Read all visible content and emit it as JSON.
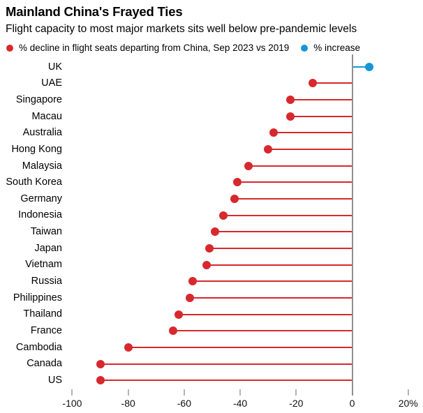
{
  "header": {
    "title": "Mainland China's Frayed Ties",
    "subtitle": "Flight capacity to most major markets sits well below pre-pandemic levels"
  },
  "legend": {
    "decline": "% decline in flight seats departing from China, Sep 2023 vs 2019",
    "increase": "% increase"
  },
  "colors": {
    "decline": "#d7282d",
    "increase": "#1496d7",
    "axis_line": "#8f8f8f",
    "tick_mark": "#b5b5b5",
    "text": "#000000",
    "background": "#ffffff"
  },
  "chart_data": {
    "type": "bar",
    "variant": "horizontal-lollipop",
    "title": "Mainland China's Frayed Ties",
    "subtitle": "Flight capacity to most major markets sits well below pre-pandemic levels",
    "unit": "%",
    "categories": [
      "UK",
      "UAE",
      "Singapore",
      "Macau",
      "Australia",
      "Hong Kong",
      "Malaysia",
      "South Korea",
      "Germany",
      "Indonesia",
      "Taiwan",
      "Japan",
      "Vietnam",
      "Russia",
      "Philippines",
      "Thailand",
      "France",
      "Cambodia",
      "Canada",
      "US"
    ],
    "values": [
      6,
      -14,
      -22,
      -22,
      -28,
      -30,
      -37,
      -41,
      -42,
      -46,
      -49,
      -51,
      -52,
      -57,
      -58,
      -62,
      -64,
      -80,
      -90,
      -90
    ],
    "series": [
      {
        "name": "% decline in flight seats departing from China, Sep 2023 vs 2019",
        "color": "#d7282d",
        "applies_to": "negative"
      },
      {
        "name": "% increase",
        "color": "#1496d7",
        "applies_to": "positive"
      }
    ],
    "x_ticks": [
      -100,
      -80,
      -60,
      -40,
      -20,
      0,
      20
    ],
    "x_tick_labels": [
      "-100",
      "-80",
      "-60",
      "-40",
      "-20",
      "0",
      "20%"
    ],
    "xlim": [
      -103.6,
      25.3
    ],
    "grid": false,
    "legend_position": "top"
  }
}
